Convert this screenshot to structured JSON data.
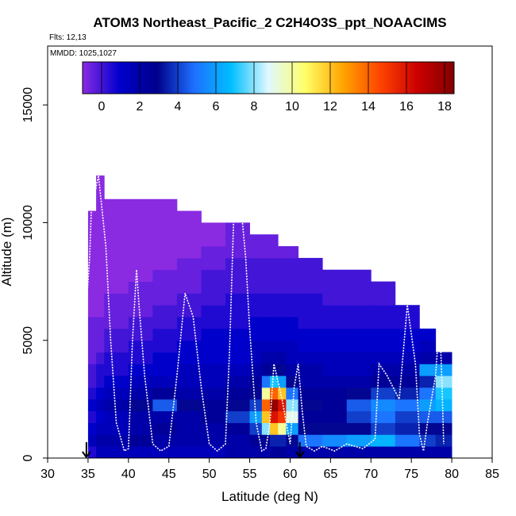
{
  "chart_data": {
    "type": "heatmap",
    "title": "ATOM3 Northeast_Pacific_2 C2H4O3S_ppt_NOAACIMS",
    "flights_label": "Flts: 12,13",
    "date_label": "MMDD: 1025,1027",
    "xlabel": "Latitude (deg N)",
    "ylabel": "Altitude (m)",
    "xlim": [
      30,
      85
    ],
    "ylim": [
      0,
      17500
    ],
    "xticks": [
      "30",
      "35",
      "40",
      "45",
      "50",
      "55",
      "60",
      "65",
      "70",
      "75",
      "80",
      "85"
    ],
    "yticks": [
      "0",
      "5000",
      "10000",
      "15000"
    ],
    "colorbar": {
      "min": -1,
      "max": 18.5,
      "ticks": [
        "0",
        "2",
        "4",
        "6",
        "8",
        "10",
        "12",
        "14",
        "16",
        "18"
      ],
      "tick_values": [
        0,
        2,
        4,
        6,
        8,
        10,
        12,
        14,
        16,
        18
      ],
      "colors": [
        "#8a2be2",
        "#0000cd",
        "#00008b",
        "#1e6fff",
        "#00bfff",
        "#e0f8ff",
        "#ffff66",
        "#ffa500",
        "#ff4500",
        "#cc0000",
        "#800000"
      ]
    },
    "arrows_latitude": [
      34.8,
      61.2
    ],
    "altitude_bins_m": [
      0,
      500,
      1000,
      1500,
      2000,
      2500,
      3000,
      3500,
      4000,
      4500,
      5000,
      5500,
      6000,
      6500,
      7000,
      7500,
      8000,
      8500,
      9000,
      9500,
      10000,
      10500,
      11000,
      11500,
      12000
    ],
    "columns": [
      {
        "lat": [
          35,
          36
        ],
        "top_m": 10500,
        "values": [
          0.5,
          1.5,
          1.0,
          0.5,
          1.0,
          0.5,
          0.0,
          0.0,
          -0.5,
          -0.5,
          -0.5,
          -0.5,
          -1.0,
          -1.0,
          -1.0,
          -1.0,
          -1.0,
          -1.0,
          -1.0,
          -1.0,
          -1.0
        ]
      },
      {
        "lat": [
          36,
          37
        ],
        "top_m": 12000,
        "values": [
          1.5,
          2.0,
          1.5,
          1.0,
          1.5,
          1.0,
          0.5,
          0.5,
          0.0,
          -0.5,
          -0.5,
          -0.5,
          -1.0,
          -1.0,
          -1.0,
          -1.0,
          -1.0,
          -1.0,
          -1.0,
          -1.0,
          -1.0,
          -1.0,
          -1.0,
          -1.0
        ]
      },
      {
        "lat": [
          37,
          40
        ],
        "top_m": 11000,
        "values": [
          1.5,
          2.0,
          1.5,
          1.5,
          2.0,
          1.5,
          1.0,
          0.5,
          0.5,
          0.0,
          0.0,
          -0.5,
          -0.5,
          -0.5,
          -1.0,
          -1.0,
          -1.0,
          -1.0,
          -1.0,
          -1.0,
          -1.0,
          -1.0
        ]
      },
      {
        "lat": [
          40,
          43
        ],
        "top_m": 11000,
        "values": [
          1.5,
          2.5,
          2.0,
          2.0,
          3.0,
          2.0,
          1.5,
          1.0,
          0.5,
          0.5,
          0.0,
          0.0,
          -0.5,
          -0.5,
          -0.5,
          -1.0,
          -1.0,
          -1.0,
          -1.0,
          -1.0,
          -1.0,
          -1.0
        ]
      },
      {
        "lat": [
          43,
          46
        ],
        "top_m": 11000,
        "values": [
          1.5,
          2.0,
          2.5,
          2.0,
          4.5,
          2.5,
          1.5,
          1.0,
          1.0,
          0.5,
          0.5,
          0.0,
          0.0,
          -0.5,
          -0.5,
          -0.5,
          -1.0,
          -1.0,
          -1.0,
          -1.0,
          -1.0,
          -1.0
        ]
      },
      {
        "lat": [
          46,
          49
        ],
        "top_m": 10500,
        "values": [
          1.5,
          2.0,
          2.0,
          2.0,
          3.0,
          2.0,
          1.5,
          1.5,
          1.0,
          1.0,
          0.5,
          0.5,
          0.0,
          0.0,
          -0.5,
          -0.5,
          -0.5,
          -1.0,
          -1.0,
          -1.0,
          -1.0
        ]
      },
      {
        "lat": [
          49,
          52
        ],
        "top_m": 10000,
        "values": [
          1.5,
          2.0,
          2.0,
          2.5,
          2.5,
          2.0,
          1.5,
          1.5,
          1.0,
          1.0,
          1.0,
          0.5,
          0.5,
          0.0,
          0.0,
          0.0,
          -0.5,
          -0.5,
          -1.0,
          -1.0
        ]
      },
      {
        "lat": [
          52,
          55
        ],
        "top_m": 10000,
        "values": [
          2.0,
          2.0,
          2.5,
          4.0,
          3.0,
          2.5,
          2.0,
          1.5,
          1.0,
          1.0,
          1.0,
          0.5,
          0.5,
          0.5,
          0.0,
          0.0,
          0.0,
          -0.5,
          -0.5,
          -0.5
        ]
      },
      {
        "lat": [
          55,
          56.5
        ],
        "top_m": 9500,
        "values": [
          2.0,
          2.5,
          4.0,
          6.0,
          4.0,
          3.0,
          2.5,
          2.0,
          1.5,
          1.5,
          1.0,
          1.0,
          0.5,
          0.5,
          0.0,
          0.0,
          0.0,
          -0.5,
          -0.5
        ]
      },
      {
        "lat": [
          56.5,
          57.5
        ],
        "top_m": 9500,
        "values": [
          2.0,
          3.0,
          8.0,
          12.0,
          14.0,
          10.0,
          5.0,
          2.5,
          2.0,
          1.5,
          1.0,
          1.0,
          0.5,
          0.5,
          0.0,
          0.0,
          0.0,
          -0.5,
          -0.5
        ]
      },
      {
        "lat": [
          57.5,
          58.5
        ],
        "top_m": 9500,
        "values": [
          2.5,
          3.5,
          12.0,
          16.0,
          18.0,
          14.0,
          7.0,
          3.0,
          2.0,
          1.5,
          1.0,
          1.0,
          0.5,
          0.5,
          0.0,
          0.0,
          0.0,
          -0.5,
          -0.5
        ]
      },
      {
        "lat": [
          58.5,
          59.5
        ],
        "top_m": 9000,
        "values": [
          2.5,
          3.5,
          10.0,
          15.0,
          16.0,
          12.0,
          6.0,
          3.0,
          2.0,
          1.5,
          1.0,
          1.0,
          0.5,
          0.5,
          0.0,
          0.0,
          0.0,
          -0.5
        ]
      },
      {
        "lat": [
          59.5,
          61
        ],
        "top_m": 9000,
        "values": [
          2.0,
          3.0,
          6.0,
          9.0,
          8.0,
          5.0,
          3.0,
          2.0,
          1.5,
          1.5,
          1.0,
          1.0,
          0.5,
          0.5,
          0.0,
          0.0,
          0.0,
          -0.5
        ]
      },
      {
        "lat": [
          61,
          64
        ],
        "top_m": 8500,
        "values": [
          2.0,
          5.0,
          3.0,
          2.5,
          3.0,
          2.5,
          2.0,
          2.0,
          1.5,
          1.0,
          1.0,
          0.5,
          0.5,
          0.5,
          0.0,
          0.0,
          0.0
        ]
      },
      {
        "lat": [
          64,
          67
        ],
        "top_m": 8000,
        "values": [
          2.0,
          5.5,
          3.0,
          2.5,
          2.5,
          2.5,
          2.0,
          1.5,
          1.5,
          1.0,
          1.0,
          0.5,
          0.5,
          0.0,
          0.0,
          0.0
        ]
      },
      {
        "lat": [
          67,
          70
        ],
        "top_m": 8000,
        "values": [
          2.0,
          6.0,
          3.0,
          4.0,
          4.5,
          3.0,
          2.0,
          1.5,
          1.5,
          1.0,
          1.0,
          0.5,
          0.5,
          0.0,
          0.0,
          0.0
        ]
      },
      {
        "lat": [
          70,
          73
        ],
        "top_m": 7500,
        "values": [
          2.0,
          6.5,
          4.0,
          5.0,
          5.5,
          4.0,
          2.5,
          2.0,
          1.5,
          1.0,
          1.0,
          0.5,
          0.5,
          0.0,
          0.0
        ]
      },
      {
        "lat": [
          73,
          76
        ],
        "top_m": 6500,
        "values": [
          2.0,
          5.0,
          3.5,
          4.0,
          5.0,
          3.5,
          2.5,
          2.0,
          1.5,
          1.0,
          1.0,
          0.5,
          0.5
        ]
      },
      {
        "lat": [
          76,
          78
        ],
        "top_m": 5500,
        "values": [
          2.0,
          4.0,
          3.0,
          4.5,
          6.0,
          5.0,
          3.5,
          6.0,
          2.0,
          1.5,
          1.0
        ]
      },
      {
        "lat": [
          78,
          80
        ],
        "top_m": 4500,
        "values": [
          2.0,
          3.5,
          3.0,
          4.5,
          6.5,
          7.0,
          8.0,
          6.0,
          2.0
        ]
      }
    ],
    "flight_track": [
      [
        34.8,
        6500
      ],
      [
        35.2,
        8500
      ],
      [
        35.4,
        10500
      ],
      [
        36.3,
        12000
      ],
      [
        37.2,
        9000
      ],
      [
        37.8,
        5000
      ],
      [
        38.5,
        1500
      ],
      [
        39.5,
        300
      ],
      [
        40.0,
        400
      ],
      [
        40.5,
        5000
      ],
      [
        41.0,
        8000
      ],
      [
        41.3,
        6500
      ],
      [
        42.0,
        3500
      ],
      [
        43.0,
        600
      ],
      [
        44.0,
        300
      ],
      [
        45.0,
        500
      ],
      [
        46.0,
        3500
      ],
      [
        47.0,
        7000
      ],
      [
        48.0,
        6000
      ],
      [
        49.0,
        3000
      ],
      [
        50.0,
        600
      ],
      [
        51.0,
        300
      ],
      [
        52.0,
        600
      ],
      [
        52.5,
        4500
      ],
      [
        53.0,
        10000
      ],
      [
        54.0,
        10400
      ],
      [
        54.5,
        8500
      ],
      [
        55.0,
        5500
      ],
      [
        55.8,
        1500
      ],
      [
        56.5,
        300
      ],
      [
        57.0,
        400
      ],
      [
        57.5,
        1500
      ],
      [
        58.0,
        4000
      ],
      [
        59.0,
        2500
      ],
      [
        60.0,
        600
      ],
      [
        60.5,
        3000
      ],
      [
        61.0,
        4000
      ],
      [
        61.5,
        2000
      ],
      [
        62.0,
        500
      ],
      [
        63.0,
        300
      ],
      [
        64.0,
        500
      ],
      [
        65.5,
        300
      ],
      [
        67.0,
        600
      ],
      [
        69.0,
        400
      ],
      [
        70.5,
        800
      ],
      [
        71.0,
        4000
      ],
      [
        72.0,
        3500
      ],
      [
        73.5,
        2500
      ],
      [
        74.5,
        6500
      ],
      [
        75.5,
        4000
      ],
      [
        76.0,
        1000
      ],
      [
        76.5,
        300
      ],
      [
        77.0,
        1500
      ],
      [
        78.0,
        3500
      ],
      [
        78.5,
        6000
      ],
      [
        78.8,
        3000
      ],
      [
        79.0,
        600
      ]
    ]
  }
}
